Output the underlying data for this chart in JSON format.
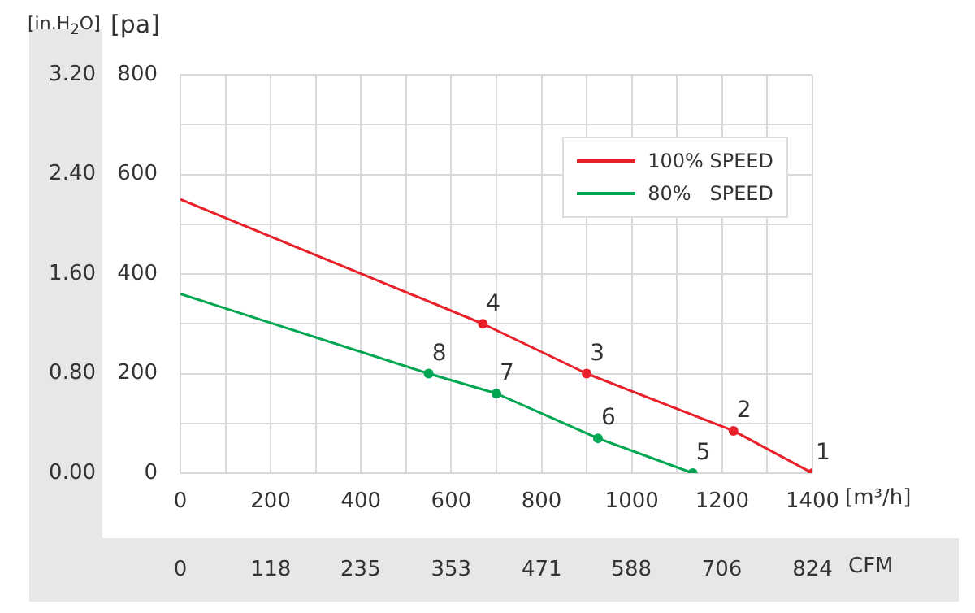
{
  "chart_data": {
    "type": "line",
    "xlabel": "[m³/h]",
    "ylabel": "[pa]",
    "y2label": "[in.H$_{2}$O]",
    "x2label": "CFM",
    "series": [
      {
        "name": "100% SPEED",
        "color": "#e8202a",
        "x": [
          0,
          670,
          900,
          1225,
          1400
        ],
        "values": [
          550,
          300,
          200,
          85,
          0
        ]
      },
      {
        "name": "80%   SPEED",
        "color": "#00a651",
        "x": [
          0,
          550,
          700,
          925,
          1135
        ],
        "values": [
          360,
          200,
          160,
          70,
          0
        ]
      }
    ],
    "xlim": [
      0,
      1400
    ],
    "xticks": [
      0,
      {
        "value": 100,
        "label": null
      },
      200,
      {
        "value": 300,
        "label": null
      },
      400,
      {
        "value": 500,
        "label": null
      },
      600,
      {
        "value": 700,
        "label": null
      },
      800,
      {
        "value": 900,
        "label": null
      },
      1000,
      {
        "value": 1100,
        "label": null
      },
      1200,
      {
        "value": 1300,
        "label": null
      },
      1400
    ],
    "ylim": [
      0,
      800
    ],
    "yticks": [
      0,
      {
        "value": 100,
        "label": null
      },
      200,
      {
        "value": 300,
        "label": null
      },
      400,
      {
        "value": 500,
        "label": null
      },
      600,
      {
        "value": 700,
        "label": null
      },
      800
    ],
    "y2lim": [
      0,
      3.2
    ],
    "y2ticks": [
      {
        "value": 0,
        "label": "0.00"
      },
      {
        "value": 0.8,
        "label": "0.80"
      },
      {
        "value": 1.6,
        "label": "1.60"
      },
      {
        "value": 2.4,
        "label": "2.40"
      },
      {
        "value": 3.2,
        "label": "3.20"
      }
    ],
    "x2lim": [
      0,
      824
    ],
    "x2ticks": [
      0,
      118,
      235,
      353,
      471,
      588,
      706,
      824
    ],
    "annotations": [
      {
        "text": "1",
        "x": 1400,
        "y": 0
      },
      {
        "text": "2",
        "x": 1225,
        "y": 85
      },
      {
        "text": "3",
        "x": 900,
        "y": 200
      },
      {
        "text": "4",
        "x": 670,
        "y": 300
      },
      {
        "text": "5",
        "x": 1135,
        "y": 0
      },
      {
        "text": "6",
        "x": 925,
        "y": 70
      },
      {
        "text": "7",
        "x": 700,
        "y": 160
      },
      {
        "text": "8",
        "x": 550,
        "y": 200
      }
    ],
    "grid": true,
    "legend": "top right",
    "marker": "circle",
    "line_style": "solid"
  }
}
